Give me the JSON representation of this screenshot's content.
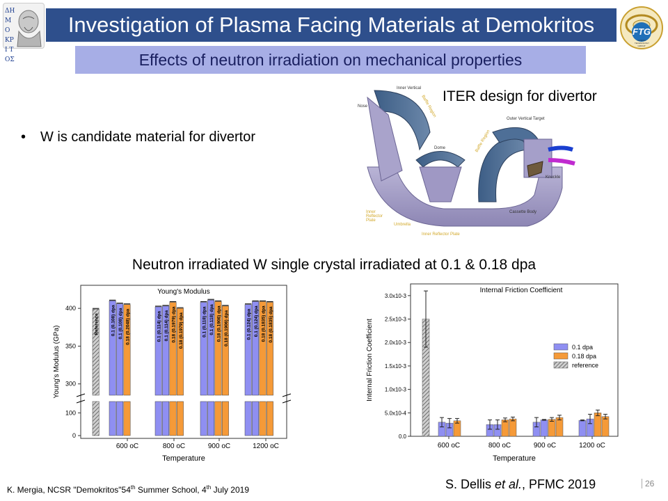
{
  "title": "Investigation of Plasma Facing Materials at Demokritos",
  "subtitle": "Effects of neutron irradiation on mechanical properties",
  "bullet": "W is candidate material for divertor",
  "iter_caption": "ITER design for divertor",
  "neutron_caption": "Neutron irradiated W single crystal irradiated at 0.1 & 0.18 dpa",
  "logo_left_text": "ΔΗ ΜΟ ΚΡΙ ΤΟΣ",
  "logo_right_text": "FTG",
  "logo_right_sub": "FUSION TECHNOLOGY GROUP",
  "footer": {
    "author": "K. Mergia, NCSR \"Demokritos\"54",
    "sup1": "th",
    "mid": " Summer School, 4",
    "sup2": "th",
    "end": " July 2019",
    "citation_prefix": "S. Dellis ",
    "citation_italic": "et al.",
    "citation_suffix": ", PFMC 2019",
    "page": "26"
  },
  "divertor_labels": {
    "inner_vertical": "Inner Vertical",
    "nose": "Nose",
    "baffle1": "Baffle Region",
    "outer_vertical": "Outer Vertical Target",
    "baffle2": "Baffle Region",
    "dome": "Dome",
    "knuckle": "Knuckle",
    "cassette": "Cassette Body",
    "inner_reflector": "Inner Reflector Plate",
    "umbrella": "Umbrella",
    "inner_reflector2": "Inner Reflector Plate"
  },
  "chart_data": [
    {
      "type": "bar",
      "title": "Young's Modulus",
      "xlabel": "Temperature",
      "ylabel": "Young's Modulus (GPa)",
      "categories": [
        "600 oC",
        "800 oC",
        "900 oC",
        "1200 oC"
      ],
      "reference": {
        "label": "Reference",
        "value": 399
      },
      "bars": [
        {
          "category": "600 oC",
          "labels": [
            "0.1 (0.108) dpa",
            "0.1 (0.108) dpa",
            "0.18 (0.2048) dpa"
          ],
          "values": [
            410,
            406,
            405
          ],
          "dpa": [
            "0.1",
            "0.1",
            "0.18"
          ]
        },
        {
          "category": "800 oC",
          "labels": [
            "0.1 (0.114) dpa",
            "0.1 (0.114) dpa",
            "0.18 (0.1979) dpa",
            "0.18 (0.1979) dpa"
          ],
          "values": [
            402,
            403,
            408,
            400
          ],
          "dpa": [
            "0.1",
            "0.1",
            "0.18",
            "0.18"
          ]
        },
        {
          "category": "900 oC",
          "labels": [
            "0.1 (0.118) dpa",
            "0.1 (0.118) dpa",
            "0.18 (0.1906) dpa",
            "0.18 (0.1906) dpa"
          ],
          "values": [
            408,
            411,
            409,
            403
          ],
          "dpa": [
            "0.1",
            "0.1",
            "0.18",
            "0.18"
          ]
        },
        {
          "category": "1200 oC",
          "labels": [
            "0.1 (0.124) dpa",
            "0.1 (0.124) dpa",
            "0.18 (0.1835) dpa",
            "0.18 (0.1835) dpa"
          ],
          "values": [
            405,
            409,
            409,
            408
          ],
          "dpa": [
            "0.1",
            "0.1",
            "0.18",
            "0.18"
          ]
        }
      ],
      "yticks_upper": [
        300,
        350,
        400
      ],
      "yticks_lower": [
        0,
        100
      ],
      "ylim_upper": [
        285,
        425
      ],
      "ylim_lower": [
        0,
        150
      ]
    },
    {
      "type": "bar",
      "title": "Internal Friction Coefficient",
      "xlabel": "Temperature",
      "ylabel": "Internal Friction Coefficient",
      "categories": [
        "600 oC",
        "800 oC",
        "900 oC",
        "1200 oC"
      ],
      "ylim": [
        0,
        0.00325
      ],
      "yticks": [
        "0.0",
        "5.0x10-4",
        "1.0x10-3",
        "1.5x10-3",
        "2.0x10-3",
        "2.5x10-3",
        "3.0x10-3"
      ],
      "ytick_values": [
        0,
        0.0005,
        0.001,
        0.0015,
        0.002,
        0.0025,
        0.003
      ],
      "legend": [
        "0.1 dpa",
        "0.18 dpa",
        "reference"
      ],
      "reference": {
        "value": 0.0025,
        "error": 0.0006
      },
      "bars": [
        {
          "category": "600 oC",
          "values": [
            0.0003,
            0.00028,
            0.00033
          ],
          "errors": [
            0.0001,
            0.0001,
            5e-05
          ],
          "dpa": [
            "0.1",
            "0.1",
            "0.18"
          ]
        },
        {
          "category": "800 oC",
          "values": [
            0.00025,
            0.00025,
            0.00035,
            0.00037
          ],
          "errors": [
            0.0001,
            0.0001,
            4e-05,
            4e-05
          ],
          "dpa": [
            "0.1",
            "0.1",
            "0.18",
            "0.18"
          ]
        },
        {
          "category": "900 oC",
          "values": [
            0.0003,
            0.00035,
            0.00036,
            0.0004
          ],
          "errors": [
            0.0001,
            1e-05,
            4e-05,
            5e-05
          ],
          "dpa": [
            "0.1",
            "0.1",
            "0.18",
            "0.18"
          ]
        },
        {
          "category": "1200 oC",
          "values": [
            0.00034,
            0.00037,
            0.0005,
            0.00042
          ],
          "errors": [
            1e-05,
            0.0001,
            6e-05,
            5e-05
          ],
          "dpa": [
            "0.1",
            "0.1",
            "0.18",
            "0.18"
          ]
        }
      ]
    }
  ],
  "colors": {
    "dpa01": "#8f8ff2",
    "dpa018": "#f59a38",
    "reference": "#999999"
  }
}
